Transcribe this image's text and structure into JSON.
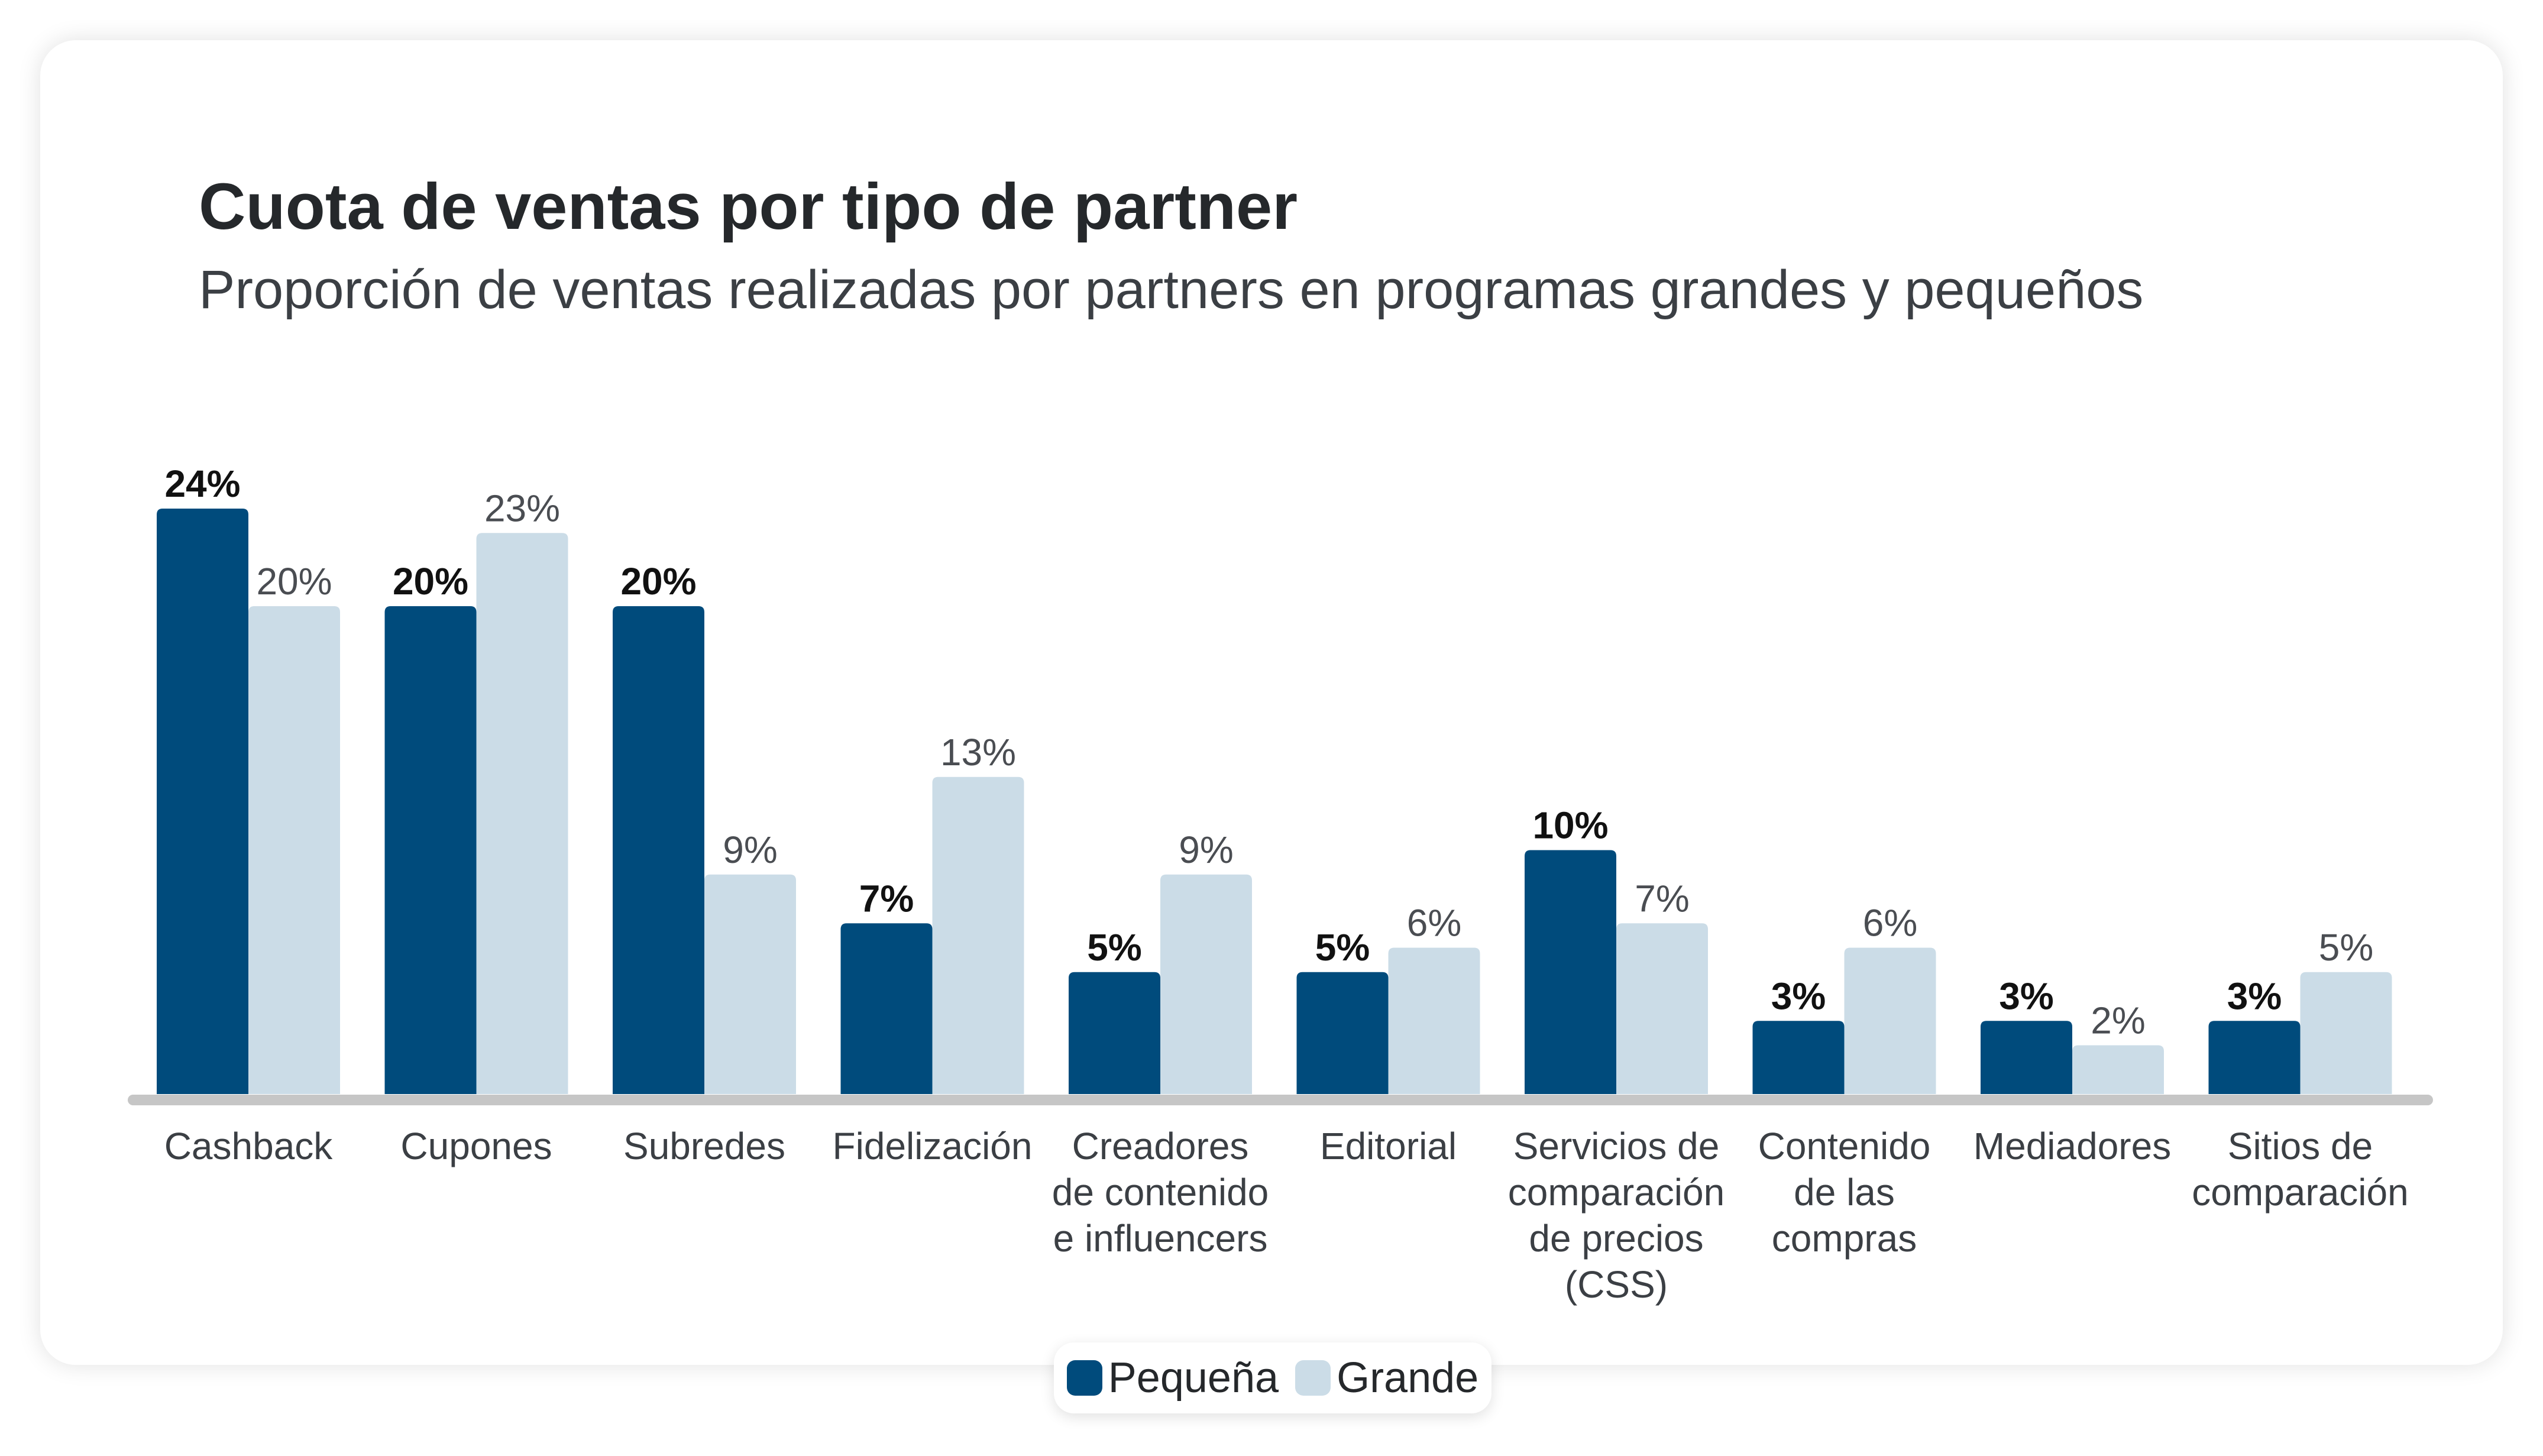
{
  "colors": {
    "small": "#004b7c",
    "large": "#cbdce7",
    "axis": "#c6c6c6"
  },
  "chart_data": {
    "type": "bar",
    "title": "Cuota de ventas por tipo de partner",
    "subtitle": "Proporción de ventas realizadas por partners en programas grandes y pequeños",
    "categories": [
      [
        "Cashback"
      ],
      [
        "Cupones"
      ],
      [
        "Subredes"
      ],
      [
        "Fidelización"
      ],
      [
        "Creadores",
        "de contenido",
        "e influencers"
      ],
      [
        "Editorial"
      ],
      [
        "Servicios de",
        "comparación",
        "de precios",
        "(CSS)"
      ],
      [
        "Contenido",
        "de las",
        "compras"
      ],
      [
        "Mediadores"
      ],
      [
        "Sitios de",
        "comparación"
      ]
    ],
    "series": [
      {
        "name": "Pequeña",
        "values": [
          24,
          20,
          20,
          7,
          5,
          5,
          10,
          3,
          3,
          3
        ],
        "labels": [
          "24%",
          "20%",
          "20%",
          "7%",
          "5%",
          "5%",
          "10%",
          "3%",
          "3%",
          "3%"
        ]
      },
      {
        "name": "Grande",
        "values": [
          20,
          23,
          9,
          13,
          9,
          6,
          7,
          6,
          2,
          5
        ],
        "labels": [
          "20%",
          "23%",
          "9%",
          "13%",
          "9%",
          "6%",
          "7%",
          "6%",
          "2%",
          "5%"
        ]
      }
    ],
    "ylim": [
      0,
      24
    ],
    "grid": false,
    "legend_position": "bottom-center"
  }
}
